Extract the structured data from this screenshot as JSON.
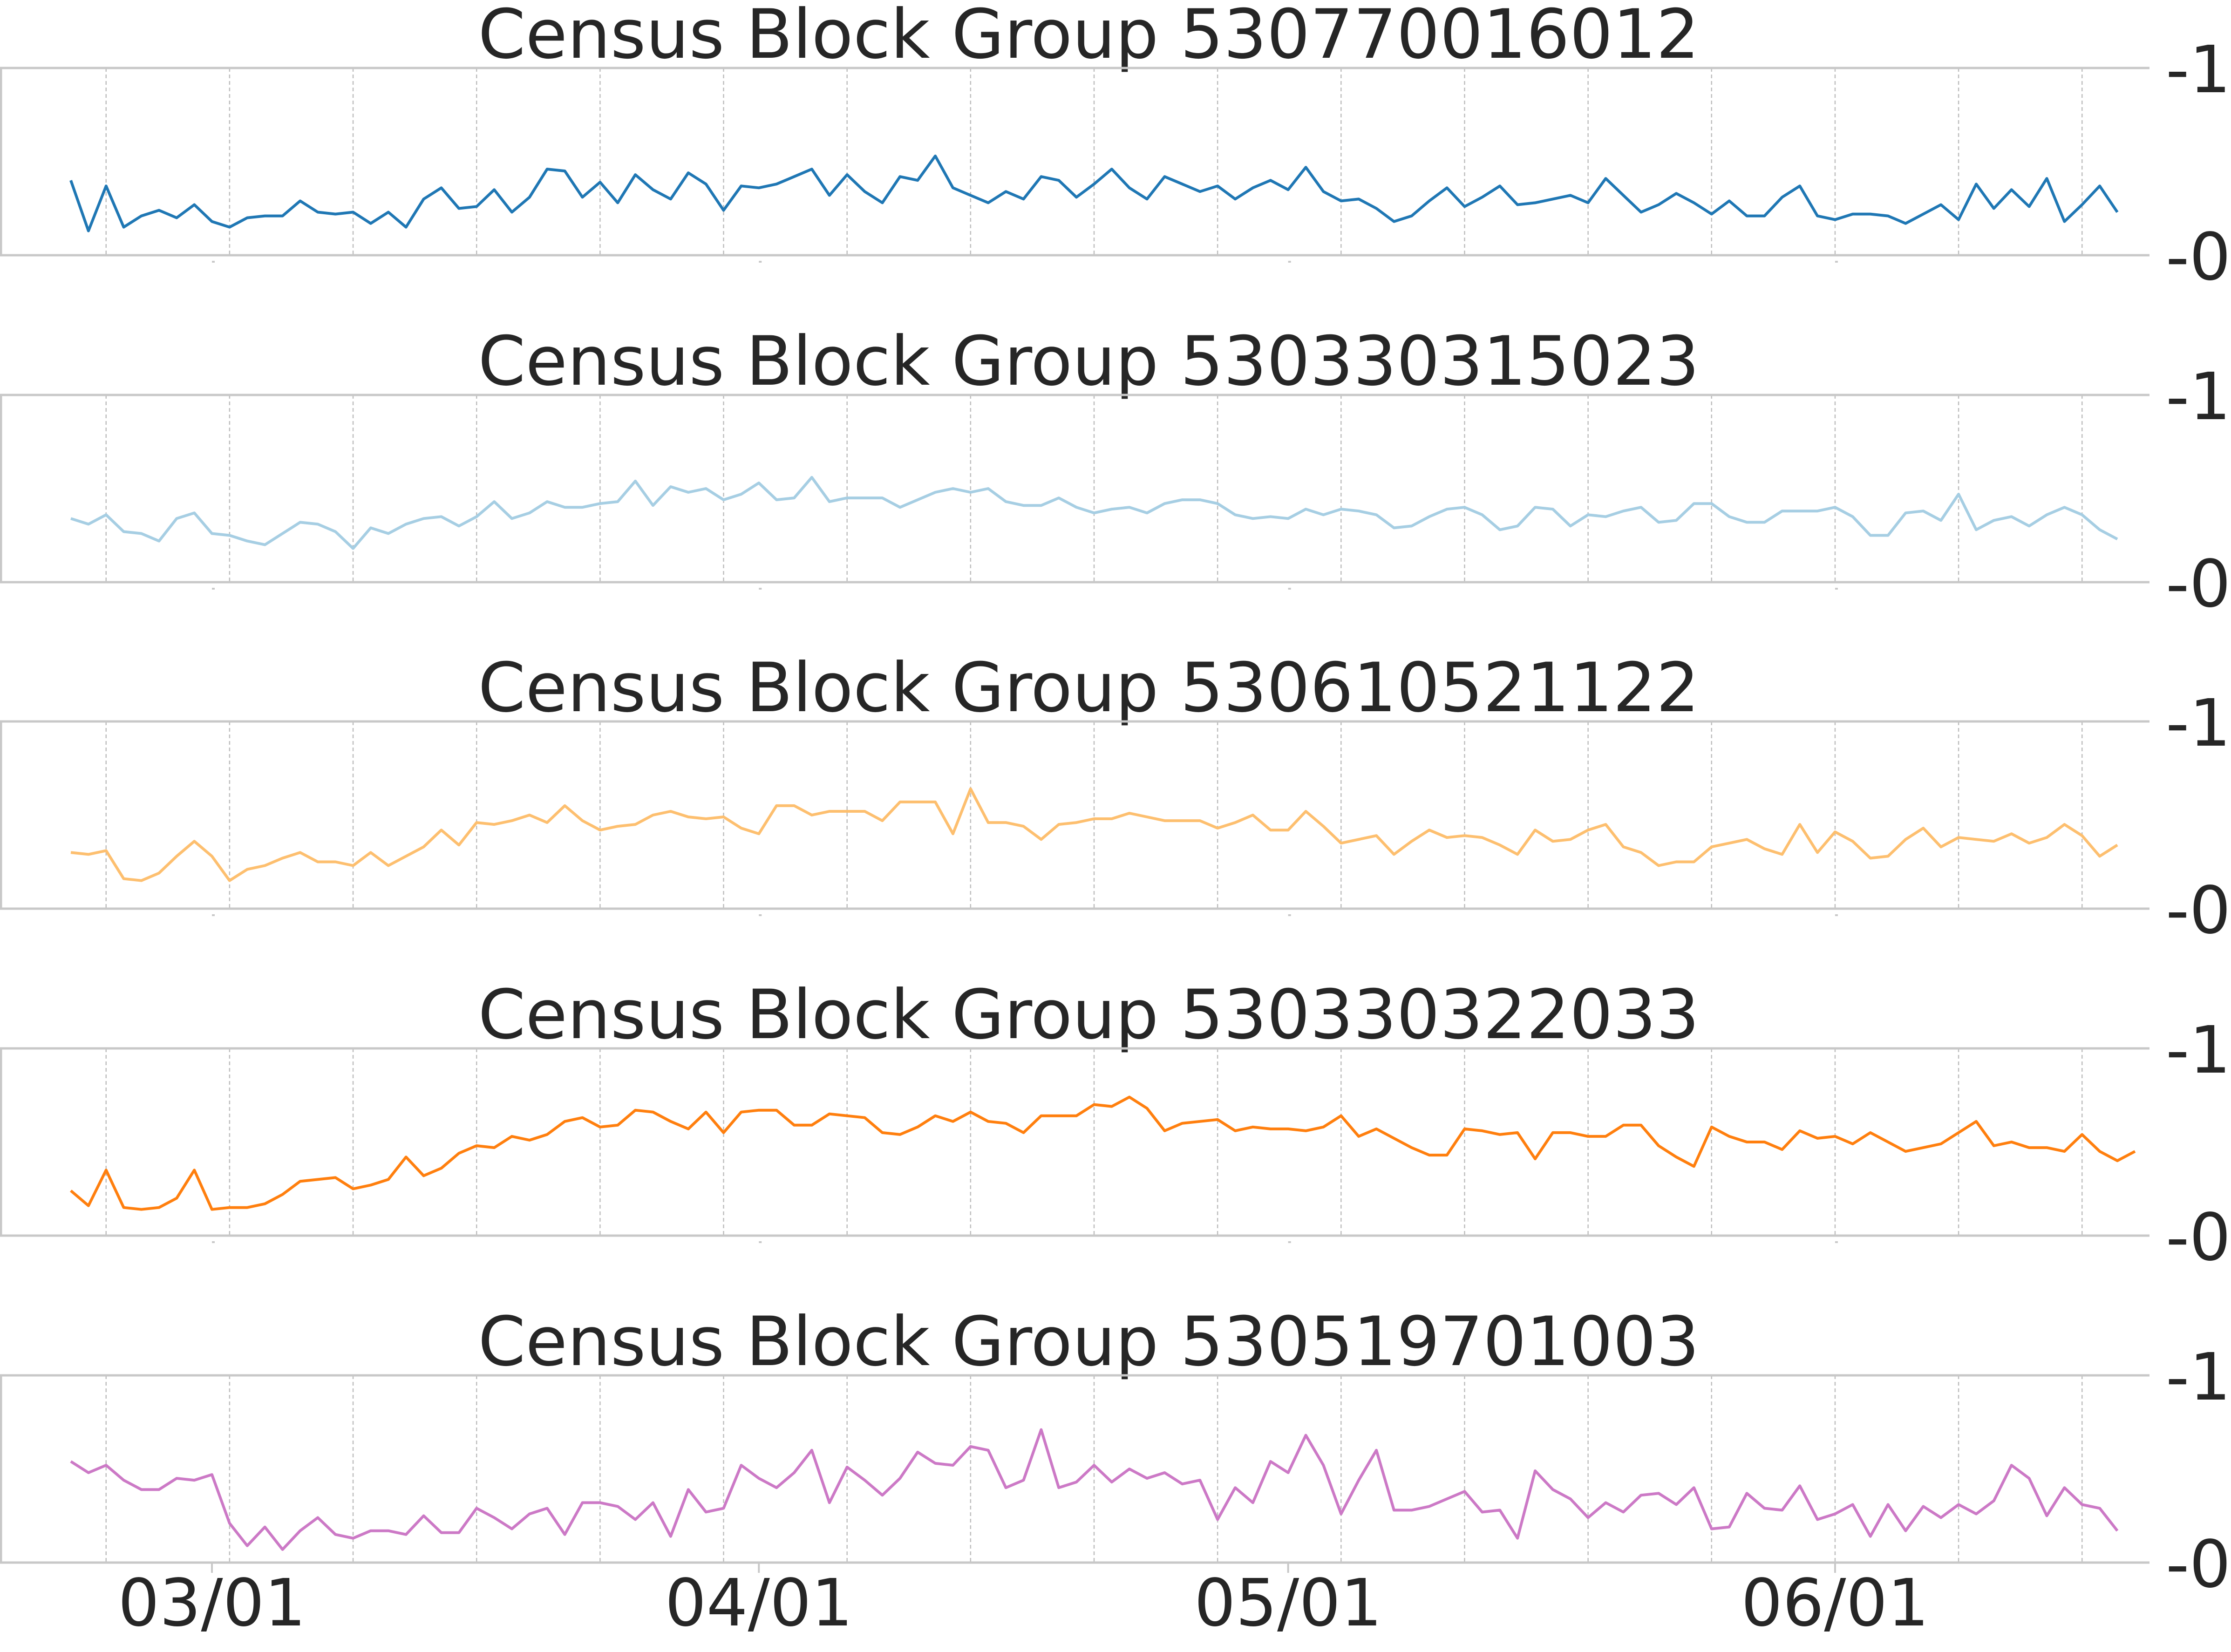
{
  "chart_data": {
    "type": "line",
    "shared_x": {
      "start": "02/22",
      "end": "06/17",
      "tick_labels": [
        "03/01",
        "04/01",
        "05/01",
        "06/01"
      ],
      "tick_dates": [
        "03/01",
        "04/01",
        "05/01",
        "06/01"
      ],
      "weekly_gridlines": true
    },
    "grid": true,
    "ylim": [
      0,
      1
    ],
    "y_tick_labels": [
      "1",
      "0"
    ],
    "y_axis_side": "right",
    "panels": [
      {
        "title": "Census Block Group 530770016012",
        "color": "#1f77b4",
        "values": [
          0.4,
          0.13,
          0.37,
          0.15,
          0.21,
          0.24,
          0.2,
          0.27,
          0.18,
          0.15,
          0.2,
          0.21,
          0.21,
          0.29,
          0.23,
          0.22,
          0.23,
          0.17,
          0.23,
          0.15,
          0.3,
          0.36,
          0.25,
          0.26,
          0.35,
          0.23,
          0.31,
          0.46,
          0.45,
          0.31,
          0.39,
          0.28,
          0.43,
          0.35,
          0.3,
          0.44,
          0.38,
          0.24,
          0.37,
          0.36,
          0.38,
          0.42,
          0.46,
          0.32,
          0.43,
          0.34,
          0.28,
          0.42,
          0.4,
          0.53,
          0.36,
          0.32,
          0.28,
          0.34,
          0.3,
          0.42,
          0.4,
          0.31,
          0.38,
          0.46,
          0.36,
          0.3,
          0.42,
          0.38,
          0.34,
          0.37,
          0.3,
          0.36,
          0.4,
          0.35,
          0.47,
          0.34,
          0.29,
          0.3,
          0.25,
          0.18,
          0.21,
          0.29,
          0.36,
          0.26,
          0.31,
          0.37,
          0.27,
          0.28,
          0.3,
          0.32,
          0.28,
          0.41,
          0.32,
          0.23,
          0.27,
          0.33,
          0.28,
          0.22,
          0.29,
          0.21,
          0.21,
          0.31,
          0.37,
          0.21,
          0.19,
          0.22,
          0.22,
          0.21,
          0.17,
          0.22,
          0.27,
          0.19,
          0.38,
          0.25,
          0.35,
          0.26,
          0.41,
          0.18,
          0.27,
          0.37,
          0.23
        ]
      },
      {
        "title": "Census Block Group 530330315023",
        "color": "#a6cee3",
        "values": [
          0.34,
          0.31,
          0.36,
          0.27,
          0.26,
          0.22,
          0.34,
          0.37,
          0.26,
          0.25,
          0.22,
          0.2,
          0.26,
          0.32,
          0.31,
          0.27,
          0.18,
          0.29,
          0.26,
          0.31,
          0.34,
          0.35,
          0.3,
          0.35,
          0.43,
          0.34,
          0.37,
          0.43,
          0.4,
          0.4,
          0.42,
          0.43,
          0.54,
          0.41,
          0.51,
          0.48,
          0.5,
          0.44,
          0.47,
          0.53,
          0.44,
          0.45,
          0.56,
          0.43,
          0.45,
          0.45,
          0.45,
          0.4,
          0.44,
          0.48,
          0.5,
          0.48,
          0.5,
          0.43,
          0.41,
          0.41,
          0.45,
          0.4,
          0.37,
          0.39,
          0.4,
          0.37,
          0.42,
          0.44,
          0.44,
          0.42,
          0.36,
          0.34,
          0.35,
          0.34,
          0.39,
          0.36,
          0.39,
          0.38,
          0.36,
          0.29,
          0.3,
          0.35,
          0.39,
          0.4,
          0.36,
          0.28,
          0.3,
          0.4,
          0.39,
          0.3,
          0.36,
          0.35,
          0.38,
          0.4,
          0.32,
          0.33,
          0.42,
          0.42,
          0.35,
          0.32,
          0.32,
          0.38,
          0.38,
          0.38,
          0.4,
          0.35,
          0.25,
          0.25,
          0.37,
          0.38,
          0.33,
          0.47,
          0.28,
          0.33,
          0.35,
          0.3,
          0.36,
          0.4,
          0.36,
          0.28,
          0.23
        ]
      },
      {
        "title": "Census Block Group 530610521122",
        "color": "#fdbf6f",
        "values": [
          0.3,
          0.29,
          0.31,
          0.16,
          0.15,
          0.19,
          0.28,
          0.36,
          0.28,
          0.15,
          0.21,
          0.23,
          0.27,
          0.3,
          0.25,
          0.25,
          0.23,
          0.3,
          0.23,
          0.28,
          0.33,
          0.42,
          0.34,
          0.46,
          0.45,
          0.47,
          0.5,
          0.46,
          0.55,
          0.47,
          0.42,
          0.44,
          0.45,
          0.5,
          0.52,
          0.49,
          0.48,
          0.49,
          0.43,
          0.4,
          0.55,
          0.55,
          0.5,
          0.52,
          0.52,
          0.52,
          0.47,
          0.57,
          0.57,
          0.57,
          0.4,
          0.64,
          0.46,
          0.46,
          0.44,
          0.37,
          0.45,
          0.46,
          0.48,
          0.48,
          0.51,
          0.49,
          0.47,
          0.47,
          0.47,
          0.43,
          0.46,
          0.5,
          0.42,
          0.42,
          0.52,
          0.44,
          0.35,
          0.37,
          0.39,
          0.29,
          0.36,
          0.42,
          0.38,
          0.39,
          0.38,
          0.34,
          0.29,
          0.42,
          0.36,
          0.37,
          0.42,
          0.45,
          0.33,
          0.3,
          0.23,
          0.25,
          0.25,
          0.33,
          0.35,
          0.37,
          0.32,
          0.29,
          0.45,
          0.3,
          0.41,
          0.36,
          0.27,
          0.28,
          0.37,
          0.43,
          0.33,
          0.38,
          0.37,
          0.36,
          0.4,
          0.35,
          0.38,
          0.45,
          0.39,
          0.28,
          0.34
        ]
      },
      {
        "title": "Census Block Group 530330322033",
        "color": "#ff7f0e",
        "values": [
          0.24,
          0.16,
          0.35,
          0.15,
          0.14,
          0.15,
          0.2,
          0.35,
          0.14,
          0.15,
          0.15,
          0.17,
          0.22,
          0.29,
          0.3,
          0.31,
          0.25,
          0.27,
          0.3,
          0.42,
          0.32,
          0.36,
          0.44,
          0.48,
          0.47,
          0.53,
          0.51,
          0.54,
          0.61,
          0.63,
          0.58,
          0.59,
          0.67,
          0.66,
          0.61,
          0.57,
          0.66,
          0.55,
          0.66,
          0.67,
          0.67,
          0.59,
          0.59,
          0.65,
          0.64,
          0.63,
          0.55,
          0.54,
          0.58,
          0.64,
          0.61,
          0.66,
          0.61,
          0.6,
          0.55,
          0.64,
          0.64,
          0.64,
          0.7,
          0.69,
          0.74,
          0.68,
          0.56,
          0.6,
          0.61,
          0.62,
          0.56,
          0.58,
          0.57,
          0.57,
          0.56,
          0.58,
          0.64,
          0.53,
          0.57,
          0.52,
          0.47,
          0.43,
          0.43,
          0.57,
          0.56,
          0.54,
          0.55,
          0.41,
          0.55,
          0.55,
          0.53,
          0.53,
          0.59,
          0.59,
          0.48,
          0.42,
          0.37,
          0.58,
          0.53,
          0.5,
          0.5,
          0.46,
          0.56,
          0.52,
          0.53,
          0.49,
          0.55,
          0.5,
          0.45,
          0.47,
          0.49,
          0.55,
          0.61,
          0.48,
          0.5,
          0.47,
          0.47,
          0.45,
          0.54,
          0.45,
          0.4,
          0.45
        ]
      },
      {
        "title": "Census Block Group 530519701003",
        "color": "#cc79c6",
        "values": [
          0.54,
          0.48,
          0.52,
          0.44,
          0.39,
          0.39,
          0.45,
          0.44,
          0.47,
          0.21,
          0.09,
          0.19,
          0.07,
          0.17,
          0.24,
          0.15,
          0.13,
          0.17,
          0.17,
          0.15,
          0.25,
          0.16,
          0.16,
          0.29,
          0.24,
          0.18,
          0.26,
          0.29,
          0.15,
          0.32,
          0.32,
          0.3,
          0.23,
          0.32,
          0.14,
          0.39,
          0.27,
          0.29,
          0.52,
          0.45,
          0.4,
          0.48,
          0.6,
          0.32,
          0.51,
          0.44,
          0.36,
          0.45,
          0.59,
          0.53,
          0.52,
          0.62,
          0.6,
          0.4,
          0.44,
          0.71,
          0.4,
          0.43,
          0.52,
          0.43,
          0.5,
          0.45,
          0.48,
          0.42,
          0.44,
          0.23,
          0.4,
          0.32,
          0.54,
          0.48,
          0.68,
          0.52,
          0.26,
          0.44,
          0.6,
          0.28,
          0.28,
          0.3,
          0.34,
          0.38,
          0.27,
          0.28,
          0.13,
          0.49,
          0.39,
          0.34,
          0.24,
          0.32,
          0.27,
          0.36,
          0.37,
          0.31,
          0.4,
          0.18,
          0.19,
          0.37,
          0.29,
          0.28,
          0.41,
          0.23,
          0.26,
          0.31,
          0.14,
          0.31,
          0.17,
          0.3,
          0.24,
          0.31,
          0.26,
          0.33,
          0.52,
          0.45,
          0.25,
          0.4,
          0.31,
          0.29,
          0.17
        ]
      }
    ]
  }
}
